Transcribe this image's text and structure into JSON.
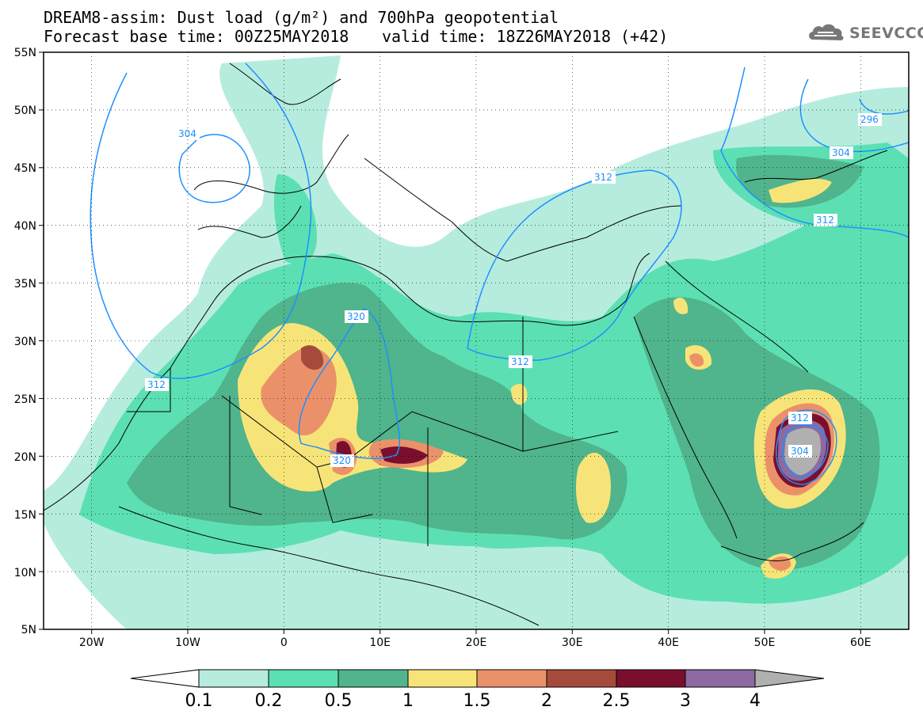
{
  "header": {
    "line1": "DREAM8-assim: Dust load (g/m²) and 700hPa geopotential",
    "line2a": "Forecast base time: 00Z25MAY2018",
    "line2b": "valid time: 18Z26MAY2018 (+42)"
  },
  "logo": {
    "text": "SEEVCCC",
    "icon": "cloud-logo-icon"
  },
  "map": {
    "lon_range": [
      -25,
      65
    ],
    "lat_range": [
      5,
      55
    ],
    "lat_labels": [
      "55N",
      "50N",
      "45N",
      "40N",
      "35N",
      "30N",
      "25N",
      "20N",
      "15N",
      "10N",
      "5N"
    ],
    "lon_labels": [
      "20W",
      "10W",
      "0",
      "10E",
      "20E",
      "30E",
      "40E",
      "50E",
      "60E"
    ],
    "contour_labels": [
      "304",
      "312",
      "296",
      "304",
      "312",
      "320",
      "312",
      "312",
      "320",
      "312",
      "304"
    ],
    "colors": {
      "contour": "#1e90ff"
    }
  },
  "colorbar": {
    "labels": [
      "0.1",
      "0.2",
      "0.5",
      "1",
      "1.5",
      "2",
      "2.5",
      "3",
      "4"
    ],
    "colors": [
      "#ffffff",
      "#b6ecde",
      "#5ce0b3",
      "#50b48c",
      "#f7e478",
      "#eb916a",
      "#a64b3c",
      "#7a0f2d",
      "#8d6aa2",
      "#b0b0b0"
    ]
  }
}
